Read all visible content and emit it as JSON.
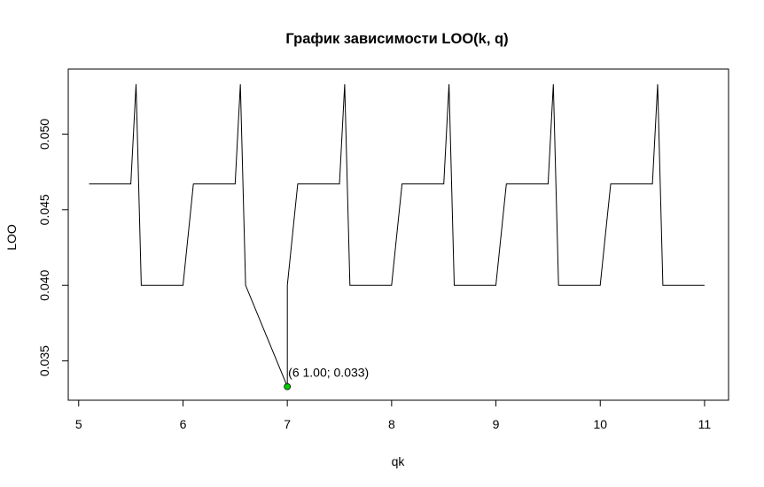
{
  "chart_data": {
    "type": "line",
    "title": "График зависимости LOO(k, q)",
    "xlabel": "qk",
    "ylabel": "LOO",
    "xlim": [
      4.9,
      11.23
    ],
    "ylim": [
      0.0324,
      0.0543
    ],
    "xticks": [
      5,
      6,
      7,
      8,
      9,
      10,
      11
    ],
    "yticks": [
      0.035,
      0.04,
      0.045,
      0.05
    ],
    "xtick_labels": [
      "5",
      "6",
      "7",
      "8",
      "9",
      "10",
      "11"
    ],
    "ytick_labels": [
      "0.035",
      "0.040",
      "0.045",
      "0.050"
    ],
    "grid": false,
    "series": [
      {
        "color": "#000000",
        "x": [
          5.1,
          5.5,
          5.55,
          5.6,
          6.0,
          6.1,
          6.5,
          6.55,
          6.6,
          7.0,
          7.1,
          7.5,
          7.55,
          7.6,
          8.0,
          8.1,
          8.5,
          8.55,
          8.6,
          9.0,
          9.1,
          9.5,
          9.55,
          9.6,
          10.0,
          10.1,
          10.5,
          10.55,
          10.6,
          11.0
        ],
        "y": [
          0.0467,
          0.0467,
          0.0533,
          0.04,
          0.04,
          0.0467,
          0.0467,
          0.0533,
          0.04,
          0.04,
          0.0467,
          0.0467,
          0.0533,
          0.04,
          0.04,
          0.0467,
          0.0467,
          0.0533,
          0.04,
          0.04,
          0.0467,
          0.0467,
          0.0533,
          0.04,
          0.04,
          0.0467,
          0.0467,
          0.0533,
          0.04,
          0.04
        ],
        "dip": {
          "after_index": 8,
          "x": 7.0,
          "y": 0.0333
        }
      }
    ],
    "highlight_point": {
      "x": 7.0,
      "y": 0.0333,
      "color": "#00cc00",
      "label": "(6 1.00; 0.033)"
    }
  }
}
